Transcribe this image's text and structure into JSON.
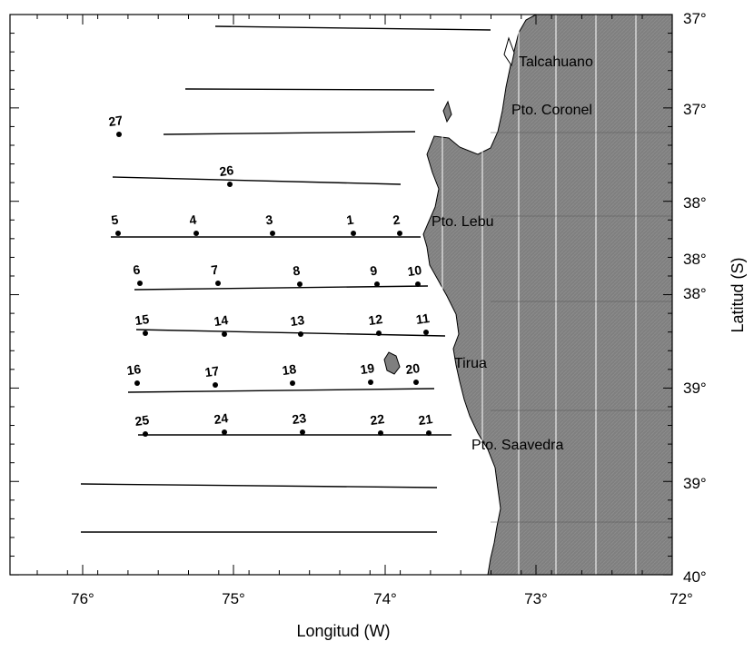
{
  "axes": {
    "xlabel": "Longitud (W)",
    "ylabel": "Latitud (S)",
    "x_ticks": [
      "76°",
      "75°",
      "74°",
      "73°",
      "72°"
    ],
    "y_ticks": [
      "37°",
      "37°",
      "38°",
      "38°",
      "38°",
      "39°",
      "39°",
      "40°"
    ]
  },
  "places": [
    "Talcahuano",
    "Pto. Coronel",
    "Pto. Lebu",
    "Tirua",
    "Pto. Saavedra"
  ],
  "stations": [
    "1",
    "2",
    "3",
    "4",
    "5",
    "6",
    "7",
    "8",
    "9",
    "10",
    "11",
    "12",
    "13",
    "14",
    "15",
    "16",
    "17",
    "18",
    "19",
    "20",
    "21",
    "22",
    "23",
    "24",
    "25",
    "26",
    "27"
  ],
  "colors": {
    "land": "#7f7f7f",
    "grid_on_land": "#ffffff",
    "ink": "#000000"
  }
}
